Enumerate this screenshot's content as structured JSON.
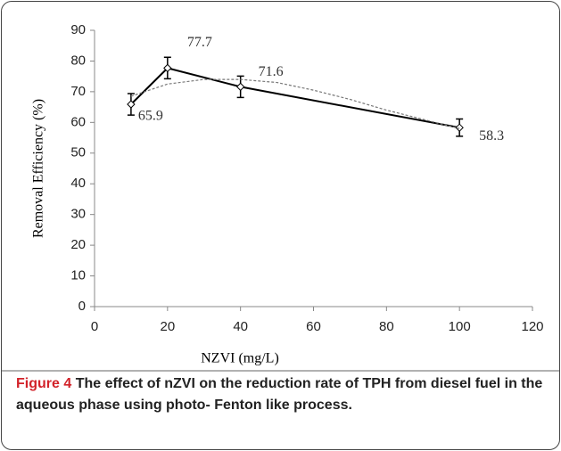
{
  "chart_data": {
    "type": "line",
    "xlabel": "NZVI (mg/L)",
    "ylabel": "Removal Efficiency (%)",
    "xlim": [
      0,
      120
    ],
    "xticks": [
      0,
      20,
      40,
      60,
      80,
      100,
      120
    ],
    "ylim": [
      0,
      90
    ],
    "yticks": [
      0,
      10,
      20,
      30,
      40,
      50,
      60,
      70,
      80,
      90
    ],
    "series": [
      {
        "color": "#000000",
        "x": [
          10,
          20,
          40,
          100
        ],
        "values": [
          65.9,
          77.7,
          71.6,
          58.3
        ],
        "errors": [
          3.5,
          3.5,
          3.5,
          2.8
        ]
      },
      {
        "color": "#777777",
        "x": [
          10,
          20,
          30,
          40,
          50,
          60,
          70,
          80,
          90,
          100
        ],
        "values": [
          68.5,
          72.5,
          74,
          74,
          73,
          70.5,
          67.5,
          64,
          61,
          58
        ]
      }
    ]
  },
  "caption": {
    "label": "Figure 4",
    "text": "The effect of nZVI on the reduction rate of TPH from diesel fuel in the aqueous phase using photo- Fenton like process."
  }
}
